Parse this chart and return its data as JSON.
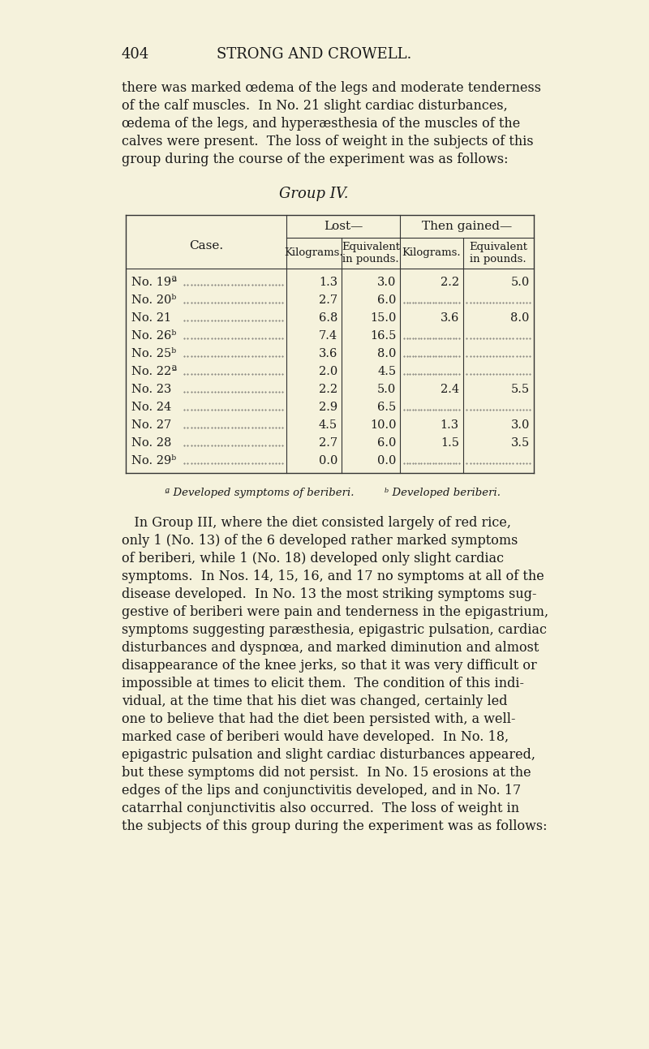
{
  "background_color": "#f5f2dc",
  "page_number": "404",
  "header_title": "STRONG AND CROWELL.",
  "intro_text": [
    "there was marked œdema of the legs and moderate tenderness",
    "of the calf muscles.  In No. 21 slight cardiac disturbances,",
    "œdema of the legs, and hyperæsthesia of the muscles of the",
    "calves were present.  The loss of weight in the subjects of this",
    "group during the course of the experiment was as follows:"
  ],
  "table_title": "Group IV.",
  "col_headers_top": [
    "Lost—",
    "Then gained—"
  ],
  "col_headers_sub": [
    "Kilograms.",
    "Equivalent\nin pounds.",
    "Kilograms.",
    "Equivalent\nin pounds."
  ],
  "case_label": "Case.",
  "rows": [
    {
      "case": "No. 19ª",
      "lost_kg": "1.3",
      "lost_lb": "3.0",
      "gained_kg": "2.2",
      "gained_lb": "5.0"
    },
    {
      "case": "No. 20ᵇ",
      "lost_kg": "2.7",
      "lost_lb": "6.0",
      "gained_kg": "",
      "gained_lb": ""
    },
    {
      "case": "No. 21",
      "lost_kg": "6.8",
      "lost_lb": "15.0",
      "gained_kg": "3.6",
      "gained_lb": "8.0"
    },
    {
      "case": "No. 26ᵇ",
      "lost_kg": "7.4",
      "lost_lb": "16.5",
      "gained_kg": "",
      "gained_lb": ""
    },
    {
      "case": "No. 25ᵇ",
      "lost_kg": "3.6",
      "lost_lb": "8.0",
      "gained_kg": "",
      "gained_lb": ""
    },
    {
      "case": "No. 22ª",
      "lost_kg": "2.0",
      "lost_lb": "4.5",
      "gained_kg": "",
      "gained_lb": ""
    },
    {
      "case": "No. 23",
      "lost_kg": "2.2",
      "lost_lb": "5.0",
      "gained_kg": "2.4",
      "gained_lb": "5.5"
    },
    {
      "case": "No. 24",
      "lost_kg": "2.9",
      "lost_lb": "6.5",
      "gained_kg": "",
      "gained_lb": ""
    },
    {
      "case": "No. 27",
      "lost_kg": "4.5",
      "lost_lb": "10.0",
      "gained_kg": "1.3",
      "gained_lb": "3.0"
    },
    {
      "case": "No. 28",
      "lost_kg": "2.7",
      "lost_lb": "6.0",
      "gained_kg": "1.5",
      "gained_lb": "3.5"
    },
    {
      "case": "No. 29ᵇ",
      "lost_kg": "0.0",
      "lost_lb": "0.0",
      "gained_kg": "",
      "gained_lb": ""
    }
  ],
  "footnote_a": "ª Developed symptoms of beriberi.",
  "footnote_b": "ᵇ Developed beriberi.",
  "body_text": [
    "   In Group III, where the diet consisted largely of red rice,",
    "only 1 (No. 13) of the 6 developed rather marked symptoms",
    "of beriberi, while 1 (No. 18) developed only slight cardiac",
    "symptoms.  In Nos. 14, 15, 16, and 17 no symptoms at all of the",
    "disease developed.  In No. 13 the most striking symptoms sug-",
    "gestive of beriberi were pain and tenderness in the epigastrium,",
    "symptoms suggesting paræsthesia, epigastric pulsation, cardiac",
    "disturbances and dyspnœa, and marked diminution and almost",
    "disappearance of the knee jerks, so that it was very difficult or",
    "impossible at times to elicit them.  The condition of this indi-",
    "vidual, at the time that his diet was changed, certainly led",
    "one to believe that had the diet been persisted with, a well-",
    "marked case of beriberi would have developed.  In No. 18,",
    "epigastric pulsation and slight cardiac disturbances appeared,",
    "but these symptoms did not persist.  In No. 15 erosions at the",
    "edges of the lips and conjunctivitis developed, and in No. 17",
    "catarrhal conjunctivitis also occurred.  The loss of weight in",
    "the subjects of this group during the experiment was as follows:"
  ],
  "text_color": "#1a1a1a",
  "line_color": "#333333",
  "font_size_body": 11.5,
  "font_size_header": 13,
  "font_size_page_num": 13
}
